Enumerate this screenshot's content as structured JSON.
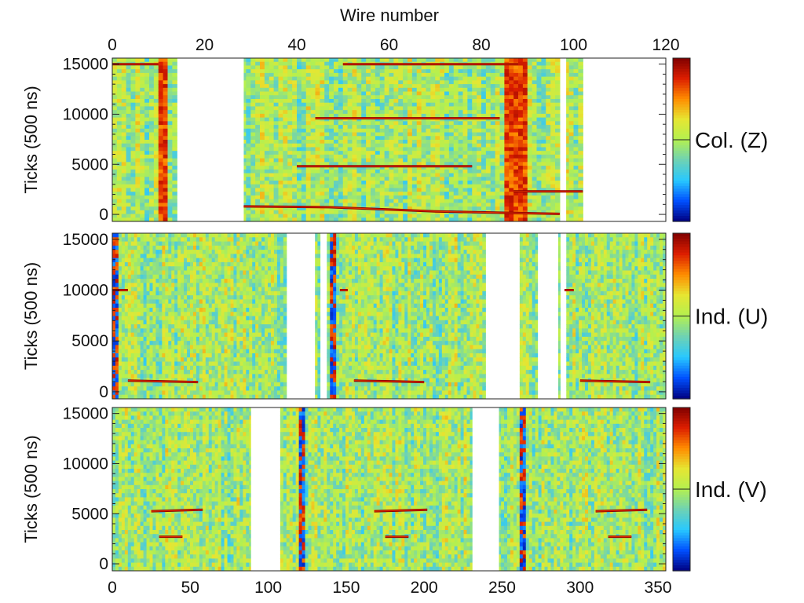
{
  "chart_data": {
    "type": "heatmap",
    "top_axis_title": "Wire number",
    "top_axis": {
      "range": [
        0,
        120
      ],
      "ticks": [
        0,
        20,
        40,
        60,
        80,
        100,
        120
      ]
    },
    "bottom_axis": {
      "range": [
        0,
        355
      ],
      "ticks": [
        0,
        50,
        100,
        150,
        200,
        250,
        300,
        350
      ]
    },
    "ylabel": "Ticks (500 ns)",
    "y_range": [
      -700,
      15600
    ],
    "y_ticks": [
      0,
      5000,
      10000,
      15000
    ],
    "colormap": [
      "#00007f",
      "#0050ff",
      "#28c8ff",
      "#6ed2b4",
      "#b4f050",
      "#e6e632",
      "#ff8c00",
      "#dc1e00",
      "#7f0000"
    ],
    "panels": [
      {
        "label": "Col. (Z)",
        "wire_range": [
          0,
          120
        ],
        "dead_wire_gaps": [
          [
            14.5,
            28.5
          ],
          [
            97.5,
            98.4
          ],
          [
            102.5,
            120
          ]
        ],
        "hot_wires": [
          11,
          86,
          87,
          88,
          89
        ],
        "tracks": [
          {
            "x": [
              28.5,
              47,
              70,
              97
            ],
            "y": [
              800,
              720,
              300,
              50
            ]
          },
          {
            "x": [
              50,
              88
            ],
            "y": [
              15000,
              15000
            ]
          },
          {
            "x": [
              0,
              10
            ],
            "y": [
              15000,
              15000
            ]
          },
          {
            "x": [
              44,
              84
            ],
            "y": [
              9600,
              9600
            ]
          },
          {
            "x": [
              40,
              78
            ],
            "y": [
              4800,
              4800
            ]
          },
          {
            "x": [
              87,
              102
            ],
            "y": [
              2300,
              2300
            ]
          }
        ]
      },
      {
        "label": "Ind. (U)",
        "wire_range": [
          0,
          355
        ],
        "dead_wire_gaps": [
          [
            112,
            130
          ],
          [
            133.5,
            137
          ],
          [
            240,
            261
          ],
          [
            273,
            286
          ],
          [
            288,
            291
          ]
        ],
        "hot_wires": [
          2,
          142,
          290
        ],
        "tracks": [
          {
            "x": [
              10,
              55
            ],
            "y": [
              1100,
              950
            ]
          },
          {
            "x": [
              155,
              200
            ],
            "y": [
              1100,
              950
            ]
          },
          {
            "x": [
              300,
              345
            ],
            "y": [
              1100,
              950
            ]
          },
          {
            "x": [
              0,
              10
            ],
            "y": [
              10000,
              10000
            ]
          },
          {
            "x": [
              146,
              151
            ],
            "y": [
              10000,
              10000
            ]
          },
          {
            "x": [
              290,
              296
            ],
            "y": [
              10000,
              10000
            ]
          }
        ]
      },
      {
        "label": "Ind. (V)",
        "wire_range": [
          0,
          355
        ],
        "dead_wire_gaps": [
          [
            89,
            107
          ],
          [
            231,
            248
          ]
        ],
        "hot_wires": [
          122,
          264
        ],
        "tracks": [
          {
            "x": [
              25,
              58
            ],
            "y": [
              5250,
              5400
            ]
          },
          {
            "x": [
              168,
              202
            ],
            "y": [
              5250,
              5400
            ]
          },
          {
            "x": [
              310,
              343
            ],
            "y": [
              5250,
              5400
            ]
          },
          {
            "x": [
              30,
              45
            ],
            "y": [
              2700,
              2700
            ]
          },
          {
            "x": [
              175,
              190
            ],
            "y": [
              2700,
              2700
            ]
          },
          {
            "x": [
              318,
              333
            ],
            "y": [
              2700,
              2700
            ]
          }
        ]
      }
    ]
  }
}
